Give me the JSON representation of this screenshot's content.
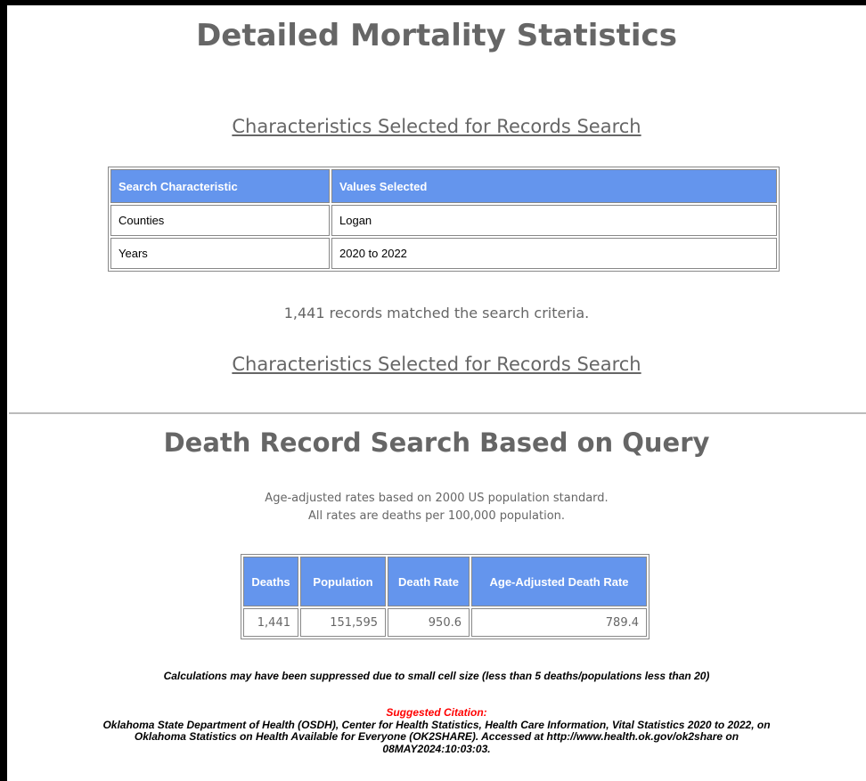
{
  "header": {
    "title": "Detailed Mortality Statistics",
    "link_top": "Characteristics Selected for Records Search",
    "link_bottom": "Characteristics Selected for Records Search"
  },
  "criteria_table": {
    "columns": [
      "Search Characteristic",
      "Values Selected"
    ],
    "rows": [
      [
        "Counties",
        "Logan"
      ],
      [
        "Years",
        "2020 to 2022"
      ]
    ]
  },
  "match_message": "1,441 records matched the search criteria.",
  "results": {
    "title": "Death Record Search Based on Query",
    "notes": [
      "Age-adjusted rates based on 2000 US population standard.",
      "All rates are deaths per 100,000 population."
    ],
    "table": {
      "columns": [
        "Deaths",
        "Population",
        "Death Rate",
        "Age-Adjusted Death Rate"
      ],
      "rows": [
        [
          "1,441",
          "151,595",
          "950.6",
          "789.4"
        ]
      ]
    }
  },
  "footer": {
    "suppression_note": "Calculations may have been suppressed due to small cell size (less than 5 deaths/populations less than 20)",
    "citation_label": "Suggested Citation:",
    "citation_lines": [
      "Oklahoma State Department of Health (OSDH), Center for Health Statistics, Health Care Information, Vital Statistics 2020 to 2022, on",
      "Oklahoma Statistics on Health Available for Everyone (OK2SHARE). Accessed at http://www.health.ok.gov/ok2share on",
      "08MAY2024:10:03:03."
    ]
  }
}
